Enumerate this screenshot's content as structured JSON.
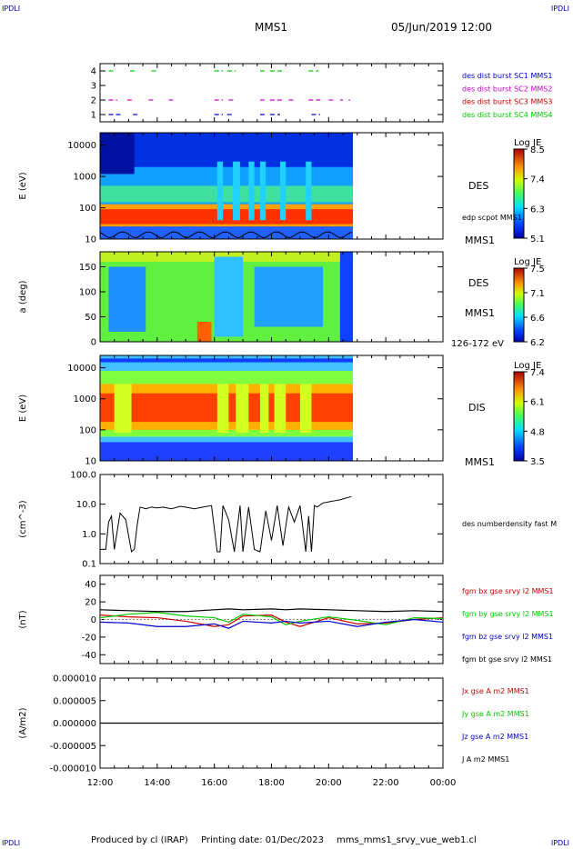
{
  "header": {
    "corner_tl": "IPDLI",
    "corner_tr": "IPDLI",
    "corner_bl": "IPDLI",
    "corner_br": "IPDLI",
    "title": "MMS1",
    "date": "05/Jun/2019 12:00"
  },
  "footer": {
    "produced": "Produced by cl (IRAP)",
    "printing": "Printing date: 01/Dec/2023",
    "file": "mms_mms1_srvy_vue_web1.cl"
  },
  "colors": {
    "axis": "#000000",
    "c1": "#0000cc",
    "c2": "#cc00cc",
    "c3": "#cc0000",
    "c4": "#00cc00"
  },
  "chart_data": [
    {
      "id": "burst",
      "type": "scatter",
      "yticks": [
        "1",
        "2",
        "3",
        "4"
      ],
      "ylim": [
        0.5,
        4.5
      ],
      "legend": [
        {
          "label": "des dist burst SC1 MMS1",
          "color": "#0000cc"
        },
        {
          "label": "des dist burst SC2 MMS2",
          "color": "#cc00cc"
        },
        {
          "label": "des dist burst SC3 MMS3",
          "color": "#cc0000"
        },
        {
          "label": "des dist burst SC4 MMS4",
          "color": "#00cc00"
        }
      ],
      "series": [
        {
          "y": 1,
          "color": "#0000cc",
          "intervals": [
            [
              12.3,
              12.8
            ],
            [
              13.15,
              13.35
            ],
            [
              16.0,
              16.3
            ],
            [
              16.45,
              16.7
            ],
            [
              17.6,
              17.85
            ],
            [
              17.95,
              18.3
            ],
            [
              19.4,
              19.7
            ]
          ]
        },
        {
          "y": 2,
          "color": "#cc00cc",
          "intervals": [
            [
              12.3,
              12.6
            ],
            [
              12.95,
              13.15
            ],
            [
              13.7,
              13.9
            ],
            [
              14.4,
              14.55
            ],
            [
              16.0,
              16.3
            ],
            [
              16.5,
              16.75
            ],
            [
              17.6,
              17.8
            ],
            [
              17.95,
              18.4
            ],
            [
              18.6,
              18.8
            ],
            [
              19.3,
              19.75
            ],
            [
              20.0,
              20.2
            ],
            [
              20.4,
              20.5
            ],
            [
              20.7,
              20.75
            ]
          ]
        },
        {
          "y": 4,
          "color": "#00cc00",
          "intervals": [
            [
              12.3,
              12.55
            ],
            [
              13.05,
              13.25
            ],
            [
              13.8,
              14.0
            ],
            [
              16.0,
              16.3
            ],
            [
              16.45,
              16.75
            ],
            [
              17.6,
              17.85
            ],
            [
              17.95,
              18.4
            ],
            [
              19.3,
              19.65
            ]
          ]
        }
      ]
    },
    {
      "id": "des_energy",
      "type": "heatmap",
      "ylabel": "E (eV)",
      "yticks": [
        "10",
        "100",
        "1000",
        "10000"
      ],
      "label": "DES",
      "overlay": "edp scpot MMS1",
      "sc": "MMS1",
      "colorbar": {
        "title": "Log JE",
        "ticks": [
          "8.5",
          "7.4",
          "6.3",
          "5.1"
        ],
        "min": 5.1,
        "max": 8.5
      }
    },
    {
      "id": "des_pitch",
      "type": "heatmap",
      "ylabel": "a (deg)",
      "yticks": [
        "0",
        "50",
        "100",
        "150"
      ],
      "label": "DES",
      "sc": "MMS1",
      "range": "126-172 eV",
      "colorbar": {
        "title": "Log JE",
        "ticks": [
          "7.5",
          "7.1",
          "6.6",
          "6.2"
        ],
        "min": 6.2,
        "max": 7.5
      }
    },
    {
      "id": "dis_energy",
      "type": "heatmap",
      "ylabel": "E (eV)",
      "yticks": [
        "10",
        "100",
        "1000",
        "10000"
      ],
      "label": "DIS",
      "sc": "MMS1",
      "colorbar": {
        "title": "Log JE",
        "ticks": [
          "7.4",
          "6.1",
          "4.8",
          "3.5"
        ],
        "min": 3.5,
        "max": 7.4
      }
    },
    {
      "id": "density",
      "type": "line",
      "ylabel": "(cm^-3)",
      "yticks": [
        "0.1",
        "1.0",
        "10.0",
        "100.0"
      ],
      "ylim": [
        0.1,
        100
      ],
      "scale": "log",
      "legend": [
        {
          "label": "des numberdensity fast M",
          "color": "#000000"
        }
      ],
      "series": [
        {
          "name": "des numberdensity fast M",
          "color": "#000000",
          "x": [
            12.0,
            12.2,
            12.3,
            12.4,
            12.5,
            12.7,
            12.9,
            13.1,
            13.2,
            13.3,
            13.4,
            13.6,
            13.8,
            14.0,
            14.2,
            14.5,
            14.8,
            15.0,
            15.3,
            15.6,
            15.9,
            16.1,
            16.2,
            16.3,
            16.5,
            16.7,
            16.9,
            17.0,
            17.2,
            17.4,
            17.6,
            17.8,
            18.0,
            18.2,
            18.4,
            18.6,
            18.8,
            19.0,
            19.2,
            19.3,
            19.4,
            19.5,
            19.6,
            19.8,
            20.0,
            20.2,
            20.4,
            20.6,
            20.8
          ],
          "y": [
            0.3,
            0.3,
            2.5,
            4,
            0.3,
            5,
            3,
            0.25,
            0.3,
            2,
            8,
            7,
            8,
            7.5,
            8,
            7,
            8.5,
            8,
            7,
            8,
            9,
            0.25,
            0.25,
            9,
            3,
            0.25,
            9,
            0.25,
            8,
            0.3,
            0.25,
            6,
            0.6,
            9,
            0.4,
            8,
            2.5,
            9,
            0.25,
            4,
            0.25,
            9,
            8,
            11,
            12,
            13,
            14,
            16,
            18
          ]
        }
      ]
    },
    {
      "id": "bfield",
      "type": "line",
      "ylabel": "(nT)",
      "yticks": [
        "-40",
        "-20",
        "0",
        "20",
        "40"
      ],
      "ylim": [
        -50,
        50
      ],
      "legend": [
        {
          "label": "fgm bx gse srvy l2 MMS1",
          "color": "#cc0000"
        },
        {
          "label": "fgm by gse srvy l2 MMS1",
          "color": "#00cc00"
        },
        {
          "label": "fgm bz gse srvy l2 MMS1",
          "color": "#0000cc"
        },
        {
          "label": "fgm bt gse srvy l2 MMS1",
          "color": "#000000"
        }
      ],
      "series": [
        {
          "name": "fgm bx gse srvy l2 MMS1",
          "color": "#cc0000",
          "x": [
            12,
            13,
            14,
            15,
            16,
            16.5,
            17,
            18,
            18.5,
            19,
            20,
            21,
            22,
            23,
            24
          ],
          "y": [
            5,
            3,
            2,
            -2,
            -8,
            -6,
            4,
            5,
            -3,
            -8,
            2,
            -5,
            -4,
            0,
            2
          ]
        },
        {
          "name": "fgm by gse srvy l2 MMS1",
          "color": "#00cc00",
          "x": [
            12,
            13,
            14,
            15,
            16,
            16.5,
            17,
            18,
            18.5,
            19,
            20,
            21,
            22,
            23,
            24
          ],
          "y": [
            2,
            6,
            8,
            4,
            2,
            -3,
            6,
            3,
            -6,
            -2,
            3,
            -1,
            -6,
            2,
            1
          ]
        },
        {
          "name": "fgm bz gse srvy l2 MMS1",
          "color": "#0000cc",
          "x": [
            12,
            13,
            14,
            15,
            16,
            16.5,
            17,
            18,
            18.5,
            19,
            20,
            21,
            22,
            23,
            24
          ],
          "y": [
            -3,
            -4,
            -8,
            -8,
            -5,
            -10,
            -2,
            -4,
            -2,
            -4,
            -2,
            -8,
            -3,
            0,
            -3
          ]
        },
        {
          "name": "fgm bt gse srvy l2 MMS1",
          "color": "#000000",
          "x": [
            12,
            13,
            14,
            15,
            16,
            16.5,
            17,
            18,
            18.5,
            19,
            20,
            21,
            22,
            23,
            24
          ],
          "y": [
            11,
            10,
            9,
            9,
            11,
            12,
            11,
            12,
            11,
            12,
            11,
            10,
            9,
            10,
            9
          ]
        }
      ]
    },
    {
      "id": "current",
      "type": "line",
      "ylabel": "(A/m2)",
      "yticks": [
        "-0.000010",
        "-0.000005",
        "0.000000",
        "0.000005",
        "0.000010"
      ],
      "ylim": [
        -1e-05,
        1e-05
      ],
      "legend": [
        {
          "label": "Jx gse A m2 MMS1",
          "color": "#cc0000"
        },
        {
          "label": "Jy gse A m2 MMS1",
          "color": "#00cc00"
        },
        {
          "label": "Jz gse A m2 MMS1",
          "color": "#0000cc"
        },
        {
          "label": "J A m2 MMS1",
          "color": "#000000"
        }
      ],
      "series": [
        {
          "name": "J A m2 MMS1",
          "color": "#000000",
          "x": [
            12,
            24
          ],
          "y": [
            0,
            0
          ]
        }
      ]
    }
  ],
  "xaxis": {
    "ticks": [
      "12:00",
      "14:00",
      "16:00",
      "18:00",
      "20:00",
      "22:00",
      "00:00"
    ],
    "range": [
      12,
      24
    ]
  }
}
